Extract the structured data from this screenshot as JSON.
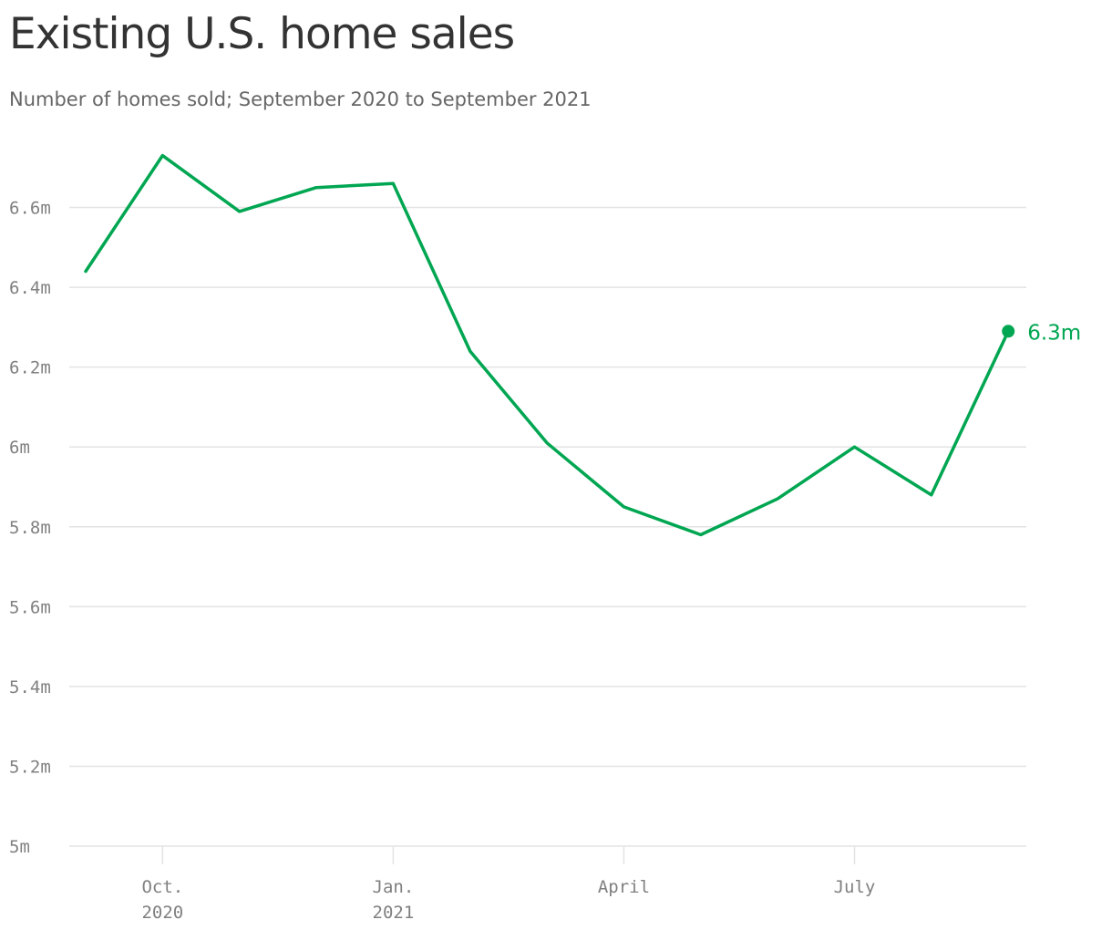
{
  "title": "Existing U.S. home sales",
  "subtitle": "Number of homes sold; September 2020 to September 2021",
  "colors": {
    "line": "#00a651",
    "grid": "#e3e3e3",
    "tick": "#808080"
  },
  "chart_data": {
    "type": "line",
    "title": "Existing U.S. home sales",
    "subtitle": "Number of homes sold; September 2020 to September 2021",
    "xlabel": "",
    "ylabel": "",
    "ylim": [
      5.0,
      6.8
    ],
    "grid": true,
    "legend": "none",
    "x": [
      "2020-09",
      "2020-10",
      "2020-11",
      "2020-12",
      "2021-01",
      "2021-02",
      "2021-03",
      "2021-04",
      "2021-05",
      "2021-06",
      "2021-07",
      "2021-08",
      "2021-09"
    ],
    "series": [
      {
        "values": [
          6.44,
          6.73,
          6.59,
          6.65,
          6.66,
          6.24,
          6.01,
          5.85,
          5.78,
          5.87,
          6.0,
          5.88,
          6.29
        ]
      }
    ],
    "y_ticks": [
      {
        "value": 5.0,
        "label": "5m"
      },
      {
        "value": 5.2,
        "label": "5.2m"
      },
      {
        "value": 5.4,
        "label": "5.4m"
      },
      {
        "value": 5.6,
        "label": "5.6m"
      },
      {
        "value": 5.8,
        "label": "5.8m"
      },
      {
        "value": 6.0,
        "label": "6m"
      },
      {
        "value": 6.2,
        "label": "6.2m"
      },
      {
        "value": 6.4,
        "label": "6.4m"
      },
      {
        "value": 6.6,
        "label": "6.6m"
      }
    ],
    "x_ticks": [
      {
        "index": 1,
        "lines": [
          "Oct.",
          "2020"
        ]
      },
      {
        "index": 4,
        "lines": [
          "Jan.",
          "2021"
        ]
      },
      {
        "index": 7,
        "lines": [
          "April"
        ]
      },
      {
        "index": 10,
        "lines": [
          "July"
        ]
      }
    ],
    "end_label": "6.3m"
  }
}
